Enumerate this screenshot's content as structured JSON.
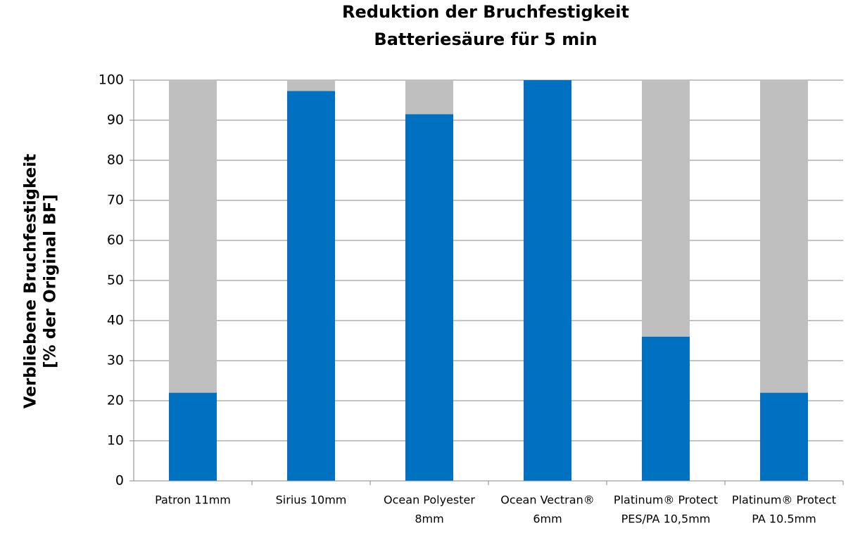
{
  "chart_data": {
    "type": "stacked_bar",
    "title": [
      "Reduktion der Bruchfestigkeit",
      "Batteriesäure für 5 min"
    ],
    "ylabel": [
      "Verbliebene Bruchfestigkeit",
      "[% der Original BF]"
    ],
    "categories": [
      [
        "Patron 11mm"
      ],
      [
        "Sirius 10mm"
      ],
      [
        "Ocean Polyester",
        "8mm"
      ],
      [
        "Ocean Vectran®",
        "6mm"
      ],
      [
        "Platinum® Protect",
        "PES/PA 10,5mm"
      ],
      [
        "Platinum® Protect",
        "PA 10.5mm"
      ]
    ],
    "series": [
      {
        "color": "#0070c0",
        "values": [
          22,
          97.3,
          91.5,
          100,
          36,
          22
        ]
      },
      {
        "color": "#bfbfbf",
        "values": [
          78,
          2.7,
          8.5,
          0,
          64,
          78
        ]
      }
    ],
    "ylim": [
      0,
      100
    ],
    "yticks": [
      0,
      10,
      20,
      30,
      40,
      50,
      60,
      70,
      80,
      90,
      100
    ],
    "grid": true
  }
}
